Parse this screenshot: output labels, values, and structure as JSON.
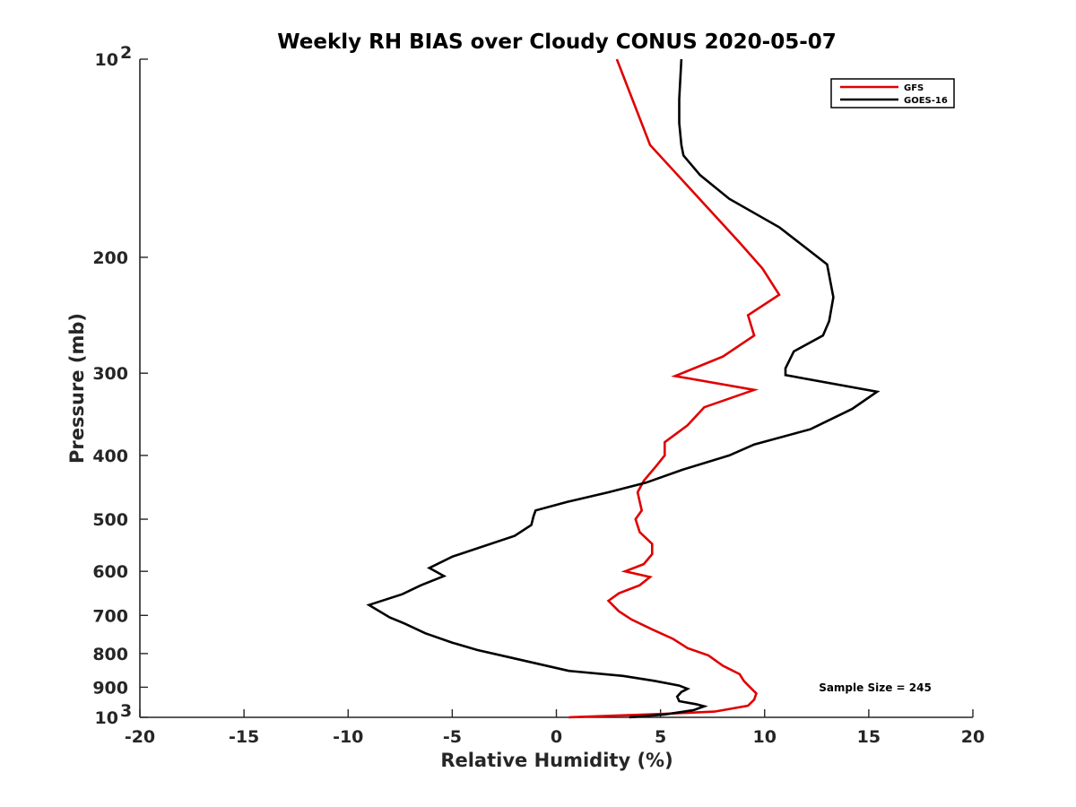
{
  "chart_data": {
    "type": "line",
    "title": "Weekly RH BIAS over Cloudy CONUS 2020-05-07",
    "xlabel": "Relative Humidity (%)",
    "ylabel": "Pressure (mb)",
    "xlim": [
      -20,
      20
    ],
    "ylim": [
      100,
      1000
    ],
    "y_scale": "log",
    "y_reversed": true,
    "grid": false,
    "legend_position": "top-right",
    "x_ticks": [
      "-20",
      "-15",
      "-10",
      "-5",
      "0",
      "5",
      "10",
      "15",
      "20"
    ],
    "y_ticks": [
      {
        "value": 100,
        "base": "10",
        "exp": "2"
      },
      {
        "value": 200,
        "label": "200"
      },
      {
        "value": 300,
        "label": "300"
      },
      {
        "value": 400,
        "label": "400"
      },
      {
        "value": 500,
        "label": "500"
      },
      {
        "value": 600,
        "label": "600"
      },
      {
        "value": 700,
        "label": "700"
      },
      {
        "value": 800,
        "label": "800"
      },
      {
        "value": 900,
        "label": "900"
      },
      {
        "value": 1000,
        "base": "10",
        "exp": "3"
      }
    ],
    "annotation": "Sample Size = 245",
    "series": [
      {
        "name": "GFS",
        "color": "#e00000",
        "points": [
          [
            2.9,
            100
          ],
          [
            4.5,
            135
          ],
          [
            8.8,
            190
          ],
          [
            9.9,
            208
          ],
          [
            10.7,
            228
          ],
          [
            9.2,
            245
          ],
          [
            9.5,
            263
          ],
          [
            8.0,
            283
          ],
          [
            5.7,
            303
          ],
          [
            9.5,
            318
          ],
          [
            7.1,
            338
          ],
          [
            6.3,
            360
          ],
          [
            5.2,
            382
          ],
          [
            5.2,
            400
          ],
          [
            4.8,
            415
          ],
          [
            4.2,
            437
          ],
          [
            3.9,
            455
          ],
          [
            4.0,
            470
          ],
          [
            4.1,
            485
          ],
          [
            3.8,
            500
          ],
          [
            4.0,
            523
          ],
          [
            4.6,
            545
          ],
          [
            4.6,
            565
          ],
          [
            4.2,
            585
          ],
          [
            3.3,
            600
          ],
          [
            4.5,
            612
          ],
          [
            4.0,
            630
          ],
          [
            3.0,
            648
          ],
          [
            2.5,
            665
          ],
          [
            3.0,
            690
          ],
          [
            3.6,
            710
          ],
          [
            4.6,
            735
          ],
          [
            5.6,
            760
          ],
          [
            6.3,
            785
          ],
          [
            7.3,
            805
          ],
          [
            8.0,
            835
          ],
          [
            8.8,
            860
          ],
          [
            9.0,
            880
          ],
          [
            9.3,
            900
          ],
          [
            9.6,
            920
          ],
          [
            9.5,
            940
          ],
          [
            9.2,
            960
          ],
          [
            7.6,
            980
          ],
          [
            5.1,
            988
          ],
          [
            0.6,
            1000
          ]
        ]
      },
      {
        "name": "GOES-16",
        "color": "#000000",
        "points": [
          [
            6.0,
            100
          ],
          [
            5.9,
            115
          ],
          [
            5.9,
            125
          ],
          [
            6.0,
            135
          ],
          [
            6.1,
            140
          ],
          [
            6.9,
            150
          ],
          [
            8.3,
            163
          ],
          [
            10.7,
            180
          ],
          [
            13.0,
            205
          ],
          [
            13.3,
            230
          ],
          [
            13.1,
            250
          ],
          [
            12.8,
            263
          ],
          [
            11.4,
            278
          ],
          [
            11.0,
            295
          ],
          [
            11.0,
            302
          ],
          [
            15.4,
            320
          ],
          [
            14.2,
            340
          ],
          [
            12.2,
            365
          ],
          [
            9.5,
            385
          ],
          [
            8.3,
            400
          ],
          [
            6.1,
            420
          ],
          [
            4.3,
            440
          ],
          [
            2.5,
            455
          ],
          [
            0.6,
            470
          ],
          [
            -1.0,
            485
          ],
          [
            -1.1,
            495
          ],
          [
            -1.2,
            510
          ],
          [
            -2.0,
            530
          ],
          [
            -5.0,
            570
          ],
          [
            -6.1,
            593
          ],
          [
            -5.4,
            610
          ],
          [
            -6.5,
            630
          ],
          [
            -7.4,
            650
          ],
          [
            -9.0,
            675
          ],
          [
            -8.0,
            705
          ],
          [
            -7.3,
            720
          ],
          [
            -6.3,
            745
          ],
          [
            -5.0,
            770
          ],
          [
            -3.8,
            790
          ],
          [
            -2.3,
            810
          ],
          [
            0.6,
            850
          ],
          [
            3.2,
            865
          ],
          [
            4.7,
            880
          ],
          [
            5.9,
            895
          ],
          [
            6.3,
            905
          ],
          [
            6.0,
            915
          ],
          [
            5.8,
            930
          ],
          [
            5.9,
            945
          ],
          [
            6.7,
            955
          ],
          [
            7.1,
            962
          ],
          [
            6.6,
            975
          ],
          [
            5.2,
            990
          ],
          [
            3.5,
            1000
          ]
        ]
      }
    ]
  }
}
